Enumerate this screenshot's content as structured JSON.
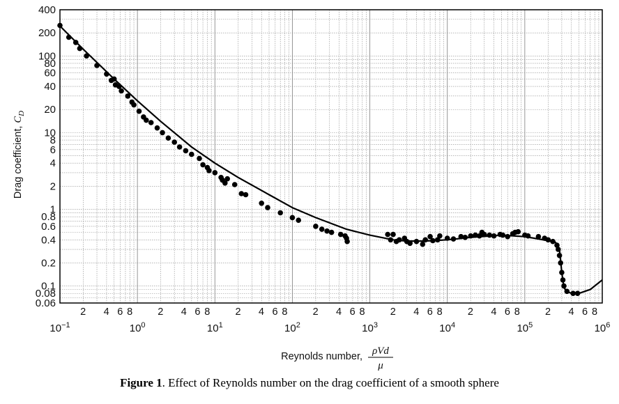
{
  "chart_data": {
    "type": "scatter",
    "title": "",
    "xscale": "log",
    "yscale": "log",
    "xlim": [
      0.1,
      1000000
    ],
    "ylim": [
      0.06,
      400
    ],
    "grid": true,
    "ylabel": {
      "text": "Drag coefficient, ",
      "symbol": "C",
      "subscript": "D"
    },
    "xlabel": {
      "text": "Reynolds number, ",
      "numerator": "ρVd",
      "denominator": "μ"
    },
    "x_major_ticks": [
      {
        "value": 0.1,
        "base": "10",
        "exp": "−1"
      },
      {
        "value": 1,
        "base": "10",
        "exp": "0"
      },
      {
        "value": 10,
        "base": "10",
        "exp": "1"
      },
      {
        "value": 100,
        "base": "10",
        "exp": "2"
      },
      {
        "value": 1000,
        "base": "10",
        "exp": "3"
      },
      {
        "value": 10000,
        "base": "10",
        "exp": "4"
      },
      {
        "value": 100000,
        "base": "10",
        "exp": "5"
      },
      {
        "value": 1000000,
        "base": "10",
        "exp": "6"
      }
    ],
    "x_minor_tick_labels": [
      "2",
      "4",
      "6",
      "8"
    ],
    "y_ticks": [
      {
        "value": 400,
        "label": "400"
      },
      {
        "value": 200,
        "label": "200"
      },
      {
        "value": 100,
        "label": "100"
      },
      {
        "value": 80,
        "label": "80"
      },
      {
        "value": 60,
        "label": "60"
      },
      {
        "value": 40,
        "label": "40"
      },
      {
        "value": 20,
        "label": "20"
      },
      {
        "value": 10,
        "label": "10"
      },
      {
        "value": 8,
        "label": "8"
      },
      {
        "value": 6,
        "label": "6"
      },
      {
        "value": 4,
        "label": "4"
      },
      {
        "value": 2,
        "label": "2"
      },
      {
        "value": 1,
        "label": "1"
      },
      {
        "value": 0.8,
        "label": "0.8"
      },
      {
        "value": 0.6,
        "label": "0.6"
      },
      {
        "value": 0.4,
        "label": "0.4"
      },
      {
        "value": 0.2,
        "label": "0.2"
      },
      {
        "value": 0.1,
        "label": "0.1"
      },
      {
        "value": 0.08,
        "label": "0.08"
      },
      {
        "value": 0.06,
        "label": "0.06"
      }
    ],
    "curve": [
      [
        0.1,
        245
      ],
      [
        0.2,
        122
      ],
      [
        0.5,
        50
      ],
      [
        1,
        26
      ],
      [
        2,
        14
      ],
      [
        5,
        6.5
      ],
      [
        10,
        4.0
      ],
      [
        20,
        2.6
      ],
      [
        50,
        1.55
      ],
      [
        100,
        1.05
      ],
      [
        200,
        0.78
      ],
      [
        500,
        0.55
      ],
      [
        1000,
        0.46
      ],
      [
        2000,
        0.4
      ],
      [
        3000,
        0.385
      ],
      [
        5000,
        0.385
      ],
      [
        10000,
        0.4
      ],
      [
        20000,
        0.43
      ],
      [
        50000,
        0.46
      ],
      [
        100000,
        0.44
      ],
      [
        200000,
        0.39
      ],
      [
        250000,
        0.37
      ],
      [
        280000,
        0.3
      ],
      [
        300000,
        0.15
      ],
      [
        320000,
        0.095
      ],
      [
        350000,
        0.085
      ],
      [
        400000,
        0.08
      ],
      [
        500000,
        0.08
      ],
      [
        700000,
        0.09
      ],
      [
        1000000,
        0.12
      ]
    ],
    "points": [
      [
        0.1,
        250
      ],
      [
        0.13,
        175
      ],
      [
        0.16,
        150
      ],
      [
        0.18,
        125
      ],
      [
        0.22,
        100
      ],
      [
        0.3,
        75
      ],
      [
        0.4,
        58
      ],
      [
        0.46,
        48
      ],
      [
        0.5,
        50
      ],
      [
        0.52,
        42
      ],
      [
        0.58,
        40
      ],
      [
        0.62,
        35
      ],
      [
        0.75,
        30
      ],
      [
        0.85,
        25
      ],
      [
        0.9,
        23
      ],
      [
        1.05,
        19
      ],
      [
        1.2,
        16
      ],
      [
        1.3,
        14.5
      ],
      [
        1.5,
        13.5
      ],
      [
        1.8,
        11.5
      ],
      [
        2.1,
        10
      ],
      [
        2.5,
        8.5
      ],
      [
        3.0,
        7.5
      ],
      [
        3.5,
        6.5
      ],
      [
        4.2,
        5.8
      ],
      [
        5.0,
        5.2
      ],
      [
        6.3,
        4.6
      ],
      [
        7.0,
        3.8
      ],
      [
        8.0,
        3.5
      ],
      [
        8.4,
        3.2
      ],
      [
        10,
        3.0
      ],
      [
        12,
        2.6
      ],
      [
        12.5,
        2.4
      ],
      [
        13.5,
        2.2
      ],
      [
        14.5,
        2.5
      ],
      [
        18,
        2.1
      ],
      [
        22,
        1.6
      ],
      [
        25,
        1.55
      ],
      [
        40,
        1.2
      ],
      [
        48,
        1.05
      ],
      [
        70,
        0.9
      ],
      [
        100,
        0.78
      ],
      [
        120,
        0.72
      ],
      [
        200,
        0.6
      ],
      [
        240,
        0.55
      ],
      [
        280,
        0.52
      ],
      [
        320,
        0.5
      ],
      [
        420,
        0.47
      ],
      [
        480,
        0.45
      ],
      [
        500,
        0.42
      ],
      [
        510,
        0.38
      ],
      [
        1700,
        0.47
      ],
      [
        1850,
        0.4
      ],
      [
        2000,
        0.47
      ],
      [
        2200,
        0.38
      ],
      [
        2400,
        0.4
      ],
      [
        2800,
        0.42
      ],
      [
        3000,
        0.38
      ],
      [
        3300,
        0.36
      ],
      [
        4000,
        0.38
      ],
      [
        4800,
        0.35
      ],
      [
        5200,
        0.4
      ],
      [
        6000,
        0.44
      ],
      [
        6500,
        0.39
      ],
      [
        7500,
        0.4
      ],
      [
        8000,
        0.45
      ],
      [
        10000,
        0.42
      ],
      [
        12000,
        0.41
      ],
      [
        15000,
        0.44
      ],
      [
        17000,
        0.43
      ],
      [
        20000,
        0.45
      ],
      [
        23000,
        0.46
      ],
      [
        26000,
        0.45
      ],
      [
        28000,
        0.5
      ],
      [
        30000,
        0.47
      ],
      [
        35000,
        0.46
      ],
      [
        40000,
        0.45
      ],
      [
        48000,
        0.47
      ],
      [
        52000,
        0.46
      ],
      [
        60000,
        0.44
      ],
      [
        70000,
        0.48
      ],
      [
        75000,
        0.5
      ],
      [
        82000,
        0.51
      ],
      [
        100000,
        0.46
      ],
      [
        110000,
        0.45
      ],
      [
        150000,
        0.44
      ],
      [
        180000,
        0.42
      ],
      [
        200000,
        0.4
      ],
      [
        230000,
        0.38
      ],
      [
        260000,
        0.34
      ],
      [
        270000,
        0.3
      ],
      [
        280000,
        0.25
      ],
      [
        290000,
        0.2
      ],
      [
        300000,
        0.15
      ],
      [
        310000,
        0.12
      ],
      [
        320000,
        0.1
      ],
      [
        350000,
        0.085
      ],
      [
        420000,
        0.08
      ],
      [
        480000,
        0.08
      ]
    ]
  },
  "caption": {
    "label": "Figure 1",
    "text": ". Effect of Reynolds number on the drag coefficient of a smooth sphere"
  }
}
